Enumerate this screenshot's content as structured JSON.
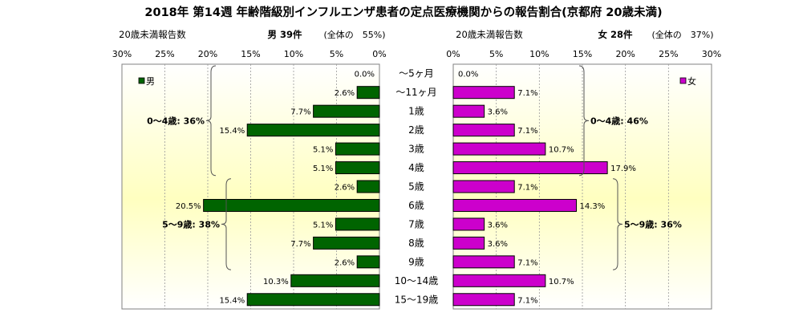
{
  "chart_data": {
    "type": "bar",
    "title": "2018年 第14週 年齢階級別インフルエンザ患者の定点医療機関からの報告割合(京都府 20歳未満)",
    "categories": [
      "～5ヶ月",
      "～11ヶ月",
      "1歳",
      "2歳",
      "3歳",
      "4歳",
      "5歳",
      "6歳",
      "7歳",
      "8歳",
      "9歳",
      "10～14歳",
      "15～19歳"
    ],
    "xlim": [
      0,
      30
    ],
    "x_ticks": [
      "30%",
      "25%",
      "20%",
      "15%",
      "10%",
      "5%",
      "0%"
    ],
    "x_ticks_right": [
      "0%",
      "5%",
      "10%",
      "15%",
      "20%",
      "25%",
      "30%"
    ],
    "grid": true,
    "series": [
      {
        "name": "男",
        "side": "left",
        "color": "#006400",
        "header_label": "20歳未満報告数",
        "header_count": "男 39件",
        "header_ratio": "(全体の　55%)",
        "values": [
          0.0,
          2.6,
          7.7,
          15.4,
          5.1,
          5.1,
          2.6,
          20.5,
          5.1,
          7.7,
          2.6,
          10.3,
          15.4
        ],
        "value_labels": [
          "0.0%",
          "2.6%",
          "7.7%",
          "15.4%",
          "5.1%",
          "5.1%",
          "2.6%",
          "20.5%",
          "5.1%",
          "7.7%",
          "2.6%",
          "10.3%",
          "15.4%"
        ],
        "groups": [
          {
            "label": "0～4歳: 36%",
            "from": 0,
            "to": 5
          },
          {
            "label": "5～9歳: 38%",
            "from": 6,
            "to": 10
          }
        ]
      },
      {
        "name": "女",
        "side": "right",
        "color": "#CC00CC",
        "header_label": "20歳未満報告数",
        "header_count": "女 28件",
        "header_ratio": "(全体の　37%)",
        "values": [
          0.0,
          7.1,
          3.6,
          7.1,
          10.7,
          17.9,
          7.1,
          14.3,
          3.6,
          3.6,
          7.1,
          10.7,
          7.1
        ],
        "value_labels": [
          "0.0%",
          "7.1%",
          "3.6%",
          "7.1%",
          "10.7%",
          "17.9%",
          "7.1%",
          "14.3%",
          "3.6%",
          "3.6%",
          "7.1%",
          "10.7%",
          "7.1%"
        ],
        "groups": [
          {
            "label": "0～4歳: 46%",
            "from": 0,
            "to": 5
          },
          {
            "label": "5～9歳: 36%",
            "from": 6,
            "to": 10
          }
        ]
      }
    ]
  }
}
